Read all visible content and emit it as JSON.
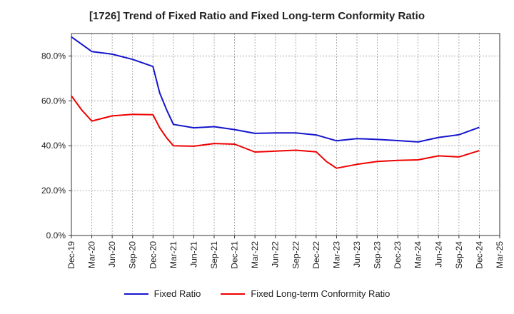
{
  "chart_data": {
    "type": "line",
    "title": "[1726]  Trend of Fixed Ratio and Fixed Long-term Conformity Ratio",
    "xlabel": "",
    "ylabel": "",
    "ylim": [
      0,
      90
    ],
    "yticks": [
      0,
      20,
      40,
      60,
      80
    ],
    "ytick_labels": [
      "0.0%",
      "20.0%",
      "40.0%",
      "60.0%",
      "80.0%"
    ],
    "x": [
      "Dec-19",
      "Mar-20",
      "Jun-20",
      "Sep-20",
      "Dec-20",
      "Mar-21",
      "Jun-21",
      "Sep-21",
      "Dec-21",
      "Mar-22",
      "Jun-22",
      "Sep-22",
      "Dec-22",
      "Mar-23",
      "Jun-23",
      "Sep-23",
      "Dec-23",
      "Mar-24",
      "Jun-24",
      "Sep-24",
      "Dec-24",
      "Mar-25"
    ],
    "grid": true,
    "legend_position": "bottom",
    "series": [
      {
        "name": "Fixed Ratio",
        "color": "#1515cc",
        "points": [
          {
            "x": 0,
            "y": 88.5
          },
          {
            "x": 1,
            "y": 82.0
          },
          {
            "x": 2,
            "y": 80.8
          },
          {
            "x": 3,
            "y": 78.5
          },
          {
            "x": 4,
            "y": 75.3
          },
          {
            "x": 4.33,
            "y": 63.5
          },
          {
            "x": 4.67,
            "y": 56.0
          },
          {
            "x": 5,
            "y": 49.5
          },
          {
            "x": 6,
            "y": 48.0
          },
          {
            "x": 7,
            "y": 48.5
          },
          {
            "x": 8,
            "y": 47.2
          },
          {
            "x": 9,
            "y": 45.5
          },
          {
            "x": 10,
            "y": 45.7
          },
          {
            "x": 11,
            "y": 45.7
          },
          {
            "x": 12,
            "y": 44.8
          },
          {
            "x": 13,
            "y": 42.2
          },
          {
            "x": 14,
            "y": 43.2
          },
          {
            "x": 15,
            "y": 42.8
          },
          {
            "x": 16,
            "y": 42.3
          },
          {
            "x": 17,
            "y": 41.7
          },
          {
            "x": 18,
            "y": 43.7
          },
          {
            "x": 19,
            "y": 44.9
          },
          {
            "x": 20,
            "y": 48.2
          }
        ]
      },
      {
        "name": "Fixed Long-term Conformity Ratio",
        "color": "#ee0000",
        "points": [
          {
            "x": 0,
            "y": 62.2
          },
          {
            "x": 0.5,
            "y": 56.0
          },
          {
            "x": 1,
            "y": 51.0
          },
          {
            "x": 2,
            "y": 53.3
          },
          {
            "x": 3,
            "y": 54.0
          },
          {
            "x": 4,
            "y": 53.8
          },
          {
            "x": 4.33,
            "y": 48.0
          },
          {
            "x": 4.67,
            "y": 43.5
          },
          {
            "x": 5,
            "y": 40.0
          },
          {
            "x": 6,
            "y": 39.8
          },
          {
            "x": 7,
            "y": 41.0
          },
          {
            "x": 8,
            "y": 40.7
          },
          {
            "x": 9,
            "y": 37.2
          },
          {
            "x": 10,
            "y": 37.6
          },
          {
            "x": 11,
            "y": 38.0
          },
          {
            "x": 12,
            "y": 37.3
          },
          {
            "x": 12.5,
            "y": 33.0
          },
          {
            "x": 13,
            "y": 30.0
          },
          {
            "x": 14,
            "y": 31.7
          },
          {
            "x": 15,
            "y": 33.0
          },
          {
            "x": 16,
            "y": 33.5
          },
          {
            "x": 17,
            "y": 33.7
          },
          {
            "x": 18,
            "y": 35.5
          },
          {
            "x": 19,
            "y": 35.0
          },
          {
            "x": 20,
            "y": 37.8
          }
        ]
      }
    ]
  }
}
